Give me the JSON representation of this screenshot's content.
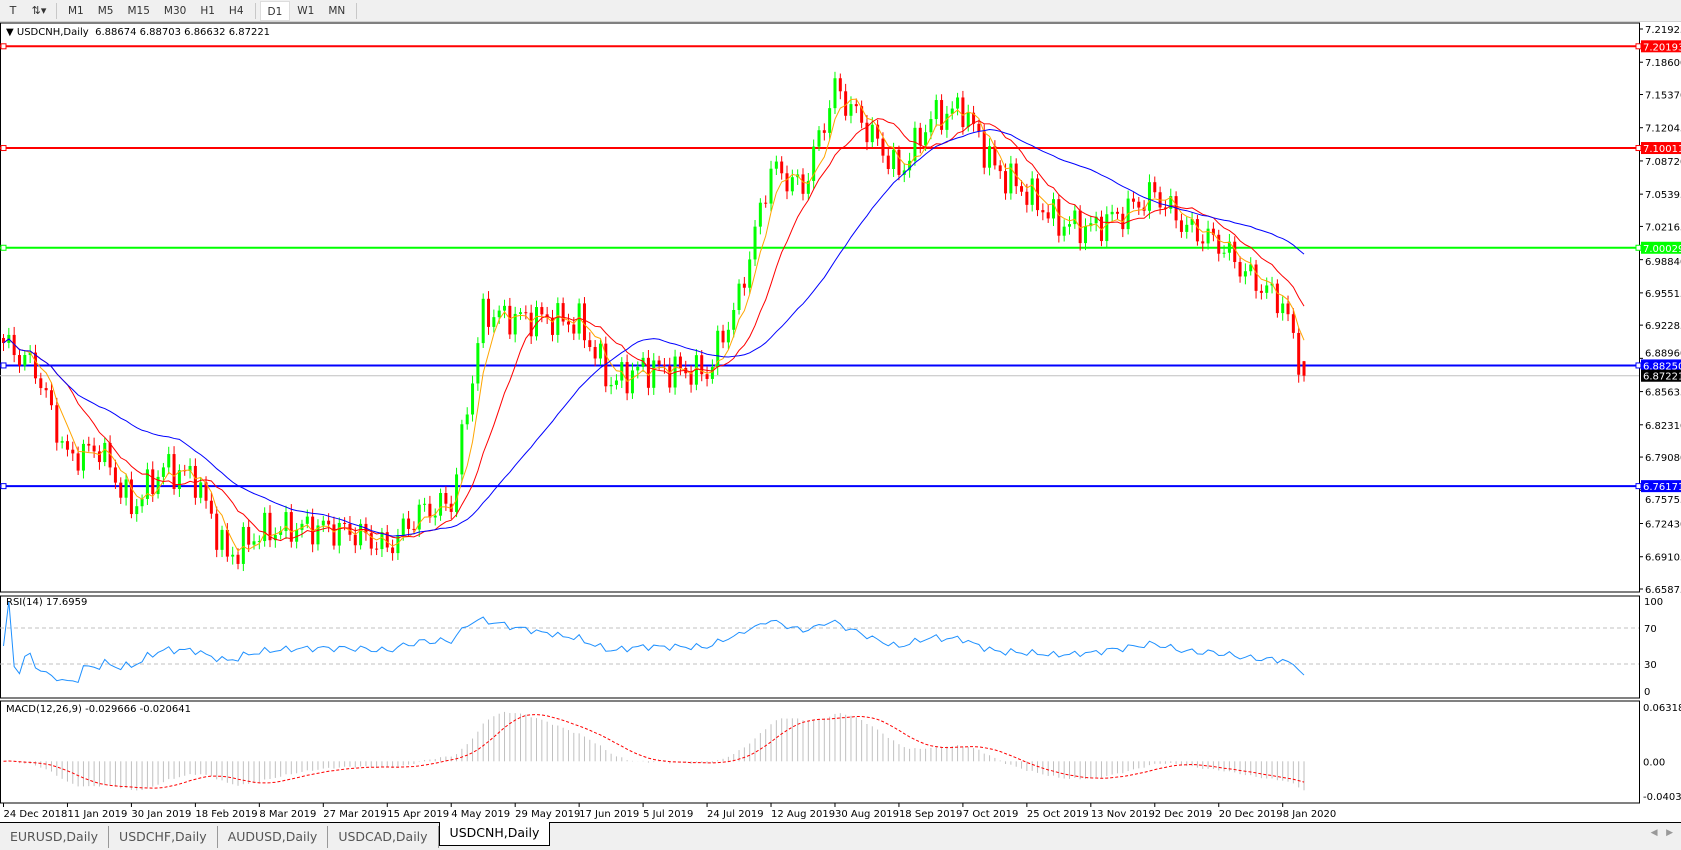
{
  "toolbar": {
    "icons": [
      "text-icon",
      "objects-dropdown-icon"
    ],
    "timeframes": [
      "M1",
      "M5",
      "M15",
      "M30",
      "H1",
      "H4",
      "D1",
      "W1",
      "MN"
    ],
    "active_timeframe": "D1"
  },
  "header": {
    "symbol": "USDCNH,Daily",
    "ohlc": "6.88674 6.88703 6.86632 6.87221"
  },
  "price_axis": [
    "7.21925",
    "7.18600",
    "7.15370",
    "7.12045",
    "7.08720",
    "7.05395",
    "7.02165",
    "6.98840",
    "6.95515",
    "6.92285",
    "6.88960",
    "6.85635",
    "6.82310",
    "6.79080",
    "6.75755",
    "6.72430",
    "6.69105",
    "6.65875"
  ],
  "hlines": [
    {
      "price": 7.20193,
      "label": "7.20193",
      "color": "#ff0000"
    },
    {
      "price": 7.10011,
      "label": "7.10011",
      "color": "#ff0000"
    },
    {
      "price": 7.00029,
      "label": "7.00029",
      "color": "#00ff00"
    },
    {
      "price": 6.8825,
      "label": "6.88250",
      "color": "#0000ff"
    },
    {
      "price": 6.76171,
      "label": "6.76171",
      "color": "#0000ff"
    }
  ],
  "bid_line": {
    "price": 6.87221,
    "label": "6.87221",
    "color": "#c0c0c0"
  },
  "colors": {
    "bull": "#00ff00",
    "bear": "#ff0000",
    "ma_fast": "#ffa500",
    "ma_mid": "#ff0000",
    "ma_slow": "#0000ff",
    "rsi": "#1e90ff",
    "macd_hist": "#c0c0c0",
    "macd_signal": "#ff0000"
  },
  "rsi": {
    "label": "RSI(14) 17.6959",
    "levels": [
      "100",
      "70",
      "30",
      "0"
    ]
  },
  "macd": {
    "label": "MACD(12,26,9) -0.029666 -0.020641",
    "levels": [
      "0.063184",
      "0.00",
      "-0.040355"
    ]
  },
  "dates": [
    "24 Dec 2018",
    "11 Jan 2019",
    "30 Jan 2019",
    "18 Feb 2019",
    "8 Mar 2019",
    "27 Mar 2019",
    "15 Apr 2019",
    "4 May 2019",
    "29 May 2019",
    "17 Jun 2019",
    "5 Jul 2019",
    "24 Jul 2019",
    "12 Aug 2019",
    "30 Aug 2019",
    "18 Sep 2019",
    "7 Oct 2019",
    "25 Oct 2019",
    "13 Nov 2019",
    "2 Dec 2019",
    "20 Dec 2019",
    "8 Jan 2020"
  ],
  "chart_data": {
    "type": "candlestick",
    "approx_closes": [
      6.905,
      6.88,
      6.79,
      6.8,
      6.74,
      6.78,
      6.77,
      6.69,
      6.715,
      6.72,
      6.72,
      6.715,
      6.7,
      6.735,
      6.745,
      6.935,
      6.93,
      6.93,
      6.925,
      6.865,
      6.88,
      6.878,
      6.875,
      6.95,
      7.08,
      7.06,
      7.16,
      7.12,
      7.075,
      7.13,
      7.14,
      7.08,
      7.055,
      7.025,
      7.02,
      7.035,
      7.055,
      7.02,
      7.005,
      6.97,
      6.945,
      6.872
    ],
    "last_bar": {
      "open": 6.88674,
      "high": 6.88703,
      "low": 6.86632,
      "close": 6.87221
    },
    "ylim": [
      6.65875,
      7.21925
    ]
  },
  "tabs": [
    {
      "label": "EURUSD,Daily"
    },
    {
      "label": "USDCHF,Daily"
    },
    {
      "label": "AUDUSD,Daily"
    },
    {
      "label": "USDCAD,Daily"
    },
    {
      "label": "USDCNH,Daily",
      "active": true
    }
  ]
}
